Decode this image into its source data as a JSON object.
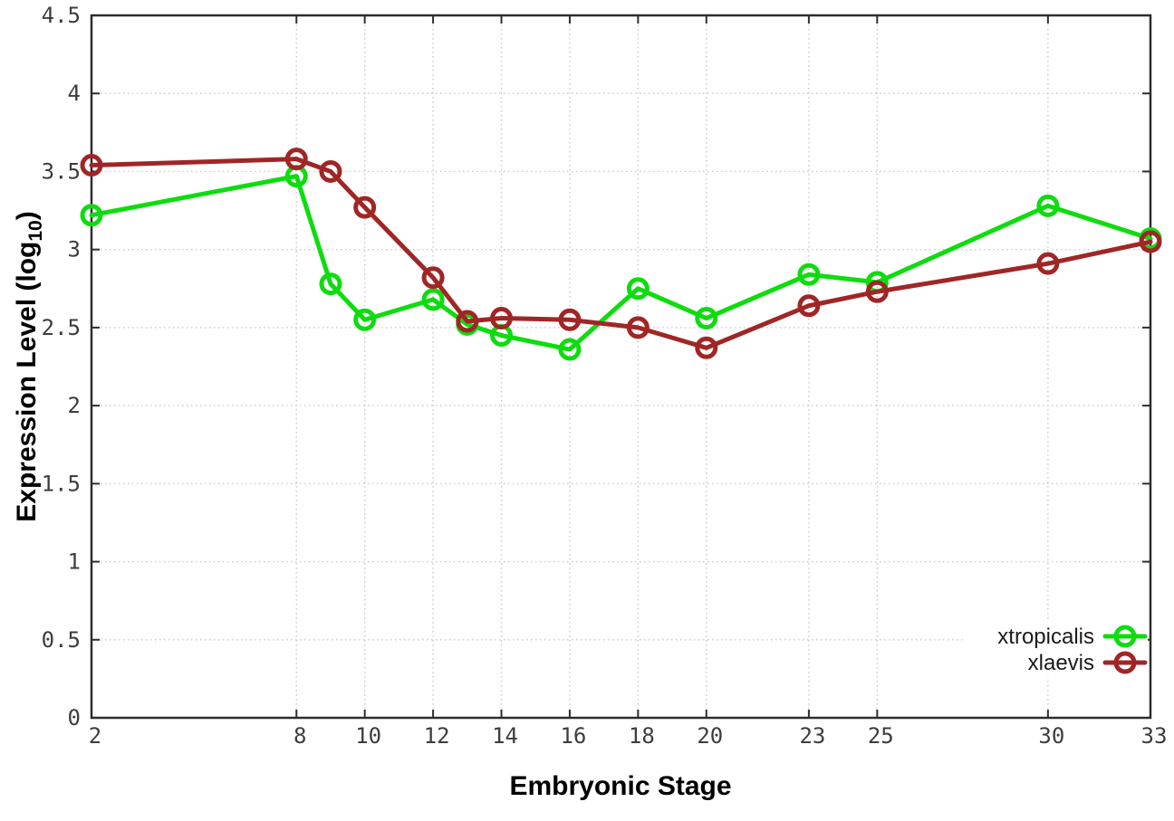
{
  "chart_data": {
    "type": "line",
    "title": "",
    "xlabel": "Embryonic Stage",
    "ylabel": "Expression Level (log10)",
    "ylabel_parts": {
      "prefix": "Expression Level (log",
      "sub": "10",
      "suffix": ")"
    },
    "x": [
      2,
      8,
      9,
      10,
      12,
      13,
      14,
      16,
      18,
      20,
      23,
      25,
      30,
      33
    ],
    "series": [
      {
        "name": "xtropicalis",
        "color": "#0edc0e",
        "values": [
          3.22,
          3.47,
          2.78,
          2.55,
          2.68,
          2.52,
          2.45,
          2.36,
          2.75,
          2.56,
          2.84,
          2.79,
          3.28,
          3.07
        ]
      },
      {
        "name": "xlaevis",
        "color": "#a02626",
        "values": [
          3.54,
          3.58,
          3.5,
          3.27,
          2.82,
          2.54,
          2.56,
          2.55,
          2.5,
          2.37,
          2.64,
          2.73,
          2.91,
          3.05
        ]
      }
    ],
    "xlim": [
      2,
      33
    ],
    "ylim": [
      0,
      4.5
    ],
    "xticks": [
      2,
      8,
      10,
      12,
      14,
      16,
      18,
      20,
      23,
      25,
      30,
      33
    ],
    "xtick_labels": [
      "2",
      "8",
      "10",
      "12",
      "14",
      "16",
      "18",
      "20",
      "23",
      "25",
      "30",
      "33"
    ],
    "yticks": [
      0,
      0.5,
      1,
      1.5,
      2,
      2.5,
      3,
      3.5,
      4,
      4.5
    ],
    "ytick_labels": [
      "0",
      "0.5",
      "1",
      "1.5",
      "2",
      "2.5",
      "3",
      "3.5",
      "4",
      "4.5"
    ],
    "grid": true,
    "legend_position": "bottom-right",
    "marker": "open-circle",
    "colors": {
      "grid": "#c8c8c8",
      "border": "#2e2e2e",
      "tick_label": "#3d3d3d",
      "legend_text": "#1a1a1a",
      "background": "#ffffff"
    }
  }
}
